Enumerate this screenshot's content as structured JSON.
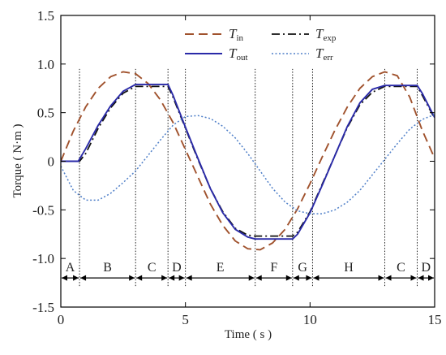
{
  "chart_data": {
    "type": "line",
    "xlabel": "Time ( s )",
    "ylabel": "Torque ( N·m )",
    "xlim": [
      0,
      15
    ],
    "ylim": [
      -1.5,
      1.5
    ],
    "x_ticks": [
      0,
      5,
      10,
      15
    ],
    "y_ticks": [
      -1.5,
      -1.0,
      -0.5,
      0,
      0.5,
      1.0,
      1.5
    ],
    "x_tick_labels": [
      "0",
      "5",
      "10",
      "15"
    ],
    "y_tick_labels": [
      "-1.5",
      "-1.0",
      "-0.5",
      "0",
      "0.5",
      "1.0",
      "1.5"
    ],
    "grid": false,
    "legend_position": "top",
    "series": [
      {
        "name": "T_in",
        "label_main": "T",
        "label_sub": "in",
        "color": "#A0522D",
        "style": "dashed",
        "x": [
          0,
          0.5,
          1,
          1.5,
          2,
          2.5,
          3,
          3.5,
          4,
          4.5,
          5,
          5.5,
          6,
          6.5,
          7,
          7.5,
          8,
          8.5,
          9,
          9.5,
          10,
          10.5,
          11,
          11.5,
          12,
          12.5,
          13,
          13.5,
          14,
          14.5,
          15
        ],
        "y": [
          0,
          0.31,
          0.56,
          0.75,
          0.87,
          0.92,
          0.9,
          0.8,
          0.63,
          0.4,
          0.12,
          -0.16,
          -0.44,
          -0.66,
          -0.82,
          -0.9,
          -0.91,
          -0.84,
          -0.7,
          -0.49,
          -0.23,
          0.05,
          0.32,
          0.56,
          0.75,
          0.87,
          0.92,
          0.88,
          0.66,
          0.32,
          0.03
        ]
      },
      {
        "name": "T_exp",
        "label_main": "T",
        "label_sub": "exp",
        "color": "#111111",
        "style": "dashdot",
        "x": [
          0,
          0.75,
          1,
          1.5,
          2,
          2.5,
          3,
          3.5,
          4,
          4.3,
          4.5,
          5,
          5.5,
          6,
          6.5,
          7,
          7.5,
          7.8,
          8,
          8.5,
          9,
          9.3,
          9.5,
          10,
          10.5,
          11,
          11.5,
          12,
          12.5,
          13,
          13.5,
          14,
          14.3,
          14.5,
          15
        ],
        "y": [
          0,
          0,
          0.08,
          0.34,
          0.55,
          0.7,
          0.77,
          0.77,
          0.77,
          0.77,
          0.66,
          0.34,
          0.02,
          -0.28,
          -0.52,
          -0.69,
          -0.76,
          -0.77,
          -0.77,
          -0.77,
          -0.77,
          -0.77,
          -0.73,
          -0.52,
          -0.23,
          0.06,
          0.35,
          0.58,
          0.71,
          0.77,
          0.77,
          0.77,
          0.77,
          0.68,
          0.44
        ]
      },
      {
        "name": "T_out",
        "label_main": "T",
        "label_sub": "out",
        "color": "#2A2AA8",
        "style": "solid",
        "x": [
          0,
          0.7,
          1,
          1.5,
          2,
          2.5,
          3,
          3.5,
          4,
          4.3,
          4.5,
          5,
          5.5,
          6,
          6.5,
          7,
          7.5,
          7.8,
          8,
          8.5,
          9,
          9.3,
          9.5,
          10,
          10.5,
          11,
          11.5,
          12,
          12.5,
          13,
          13.5,
          14,
          14.3,
          14.5,
          15
        ],
        "y": [
          0,
          0,
          0.13,
          0.37,
          0.57,
          0.72,
          0.79,
          0.79,
          0.79,
          0.79,
          0.68,
          0.35,
          0.03,
          -0.28,
          -0.53,
          -0.7,
          -0.78,
          -0.8,
          -0.8,
          -0.8,
          -0.8,
          -0.8,
          -0.75,
          -0.53,
          -0.24,
          0.06,
          0.36,
          0.6,
          0.74,
          0.78,
          0.78,
          0.78,
          0.78,
          0.7,
          0.45
        ]
      },
      {
        "name": "T_err",
        "label_main": "T",
        "label_sub": "err",
        "color": "#4F7FC8",
        "style": "dotted",
        "x": [
          0,
          0.5,
          1,
          1.5,
          2,
          2.5,
          3,
          3.5,
          4,
          4.5,
          5,
          5.5,
          6,
          6.5,
          7,
          7.5,
          8,
          8.5,
          9,
          9.5,
          10,
          10.5,
          11,
          11.5,
          12,
          12.5,
          13,
          13.5,
          14,
          14.5,
          15
        ],
        "y": [
          -0.05,
          -0.3,
          -0.4,
          -0.4,
          -0.33,
          -0.22,
          -0.1,
          0.06,
          0.22,
          0.37,
          0.46,
          0.47,
          0.44,
          0.36,
          0.24,
          0.08,
          -0.1,
          -0.28,
          -0.42,
          -0.51,
          -0.54,
          -0.54,
          -0.5,
          -0.42,
          -0.3,
          -0.14,
          0.02,
          0.18,
          0.33,
          0.43,
          0.48
        ]
      }
    ],
    "phases": {
      "row_y": -1.2,
      "boundaries": [
        0,
        0.75,
        3.0,
        4.3,
        5.0,
        7.8,
        9.3,
        10.1,
        13.0,
        14.3,
        15
      ],
      "labels": [
        "A",
        "B",
        "C",
        "D",
        "E",
        "F",
        "G",
        "H",
        "C",
        "D"
      ]
    }
  }
}
